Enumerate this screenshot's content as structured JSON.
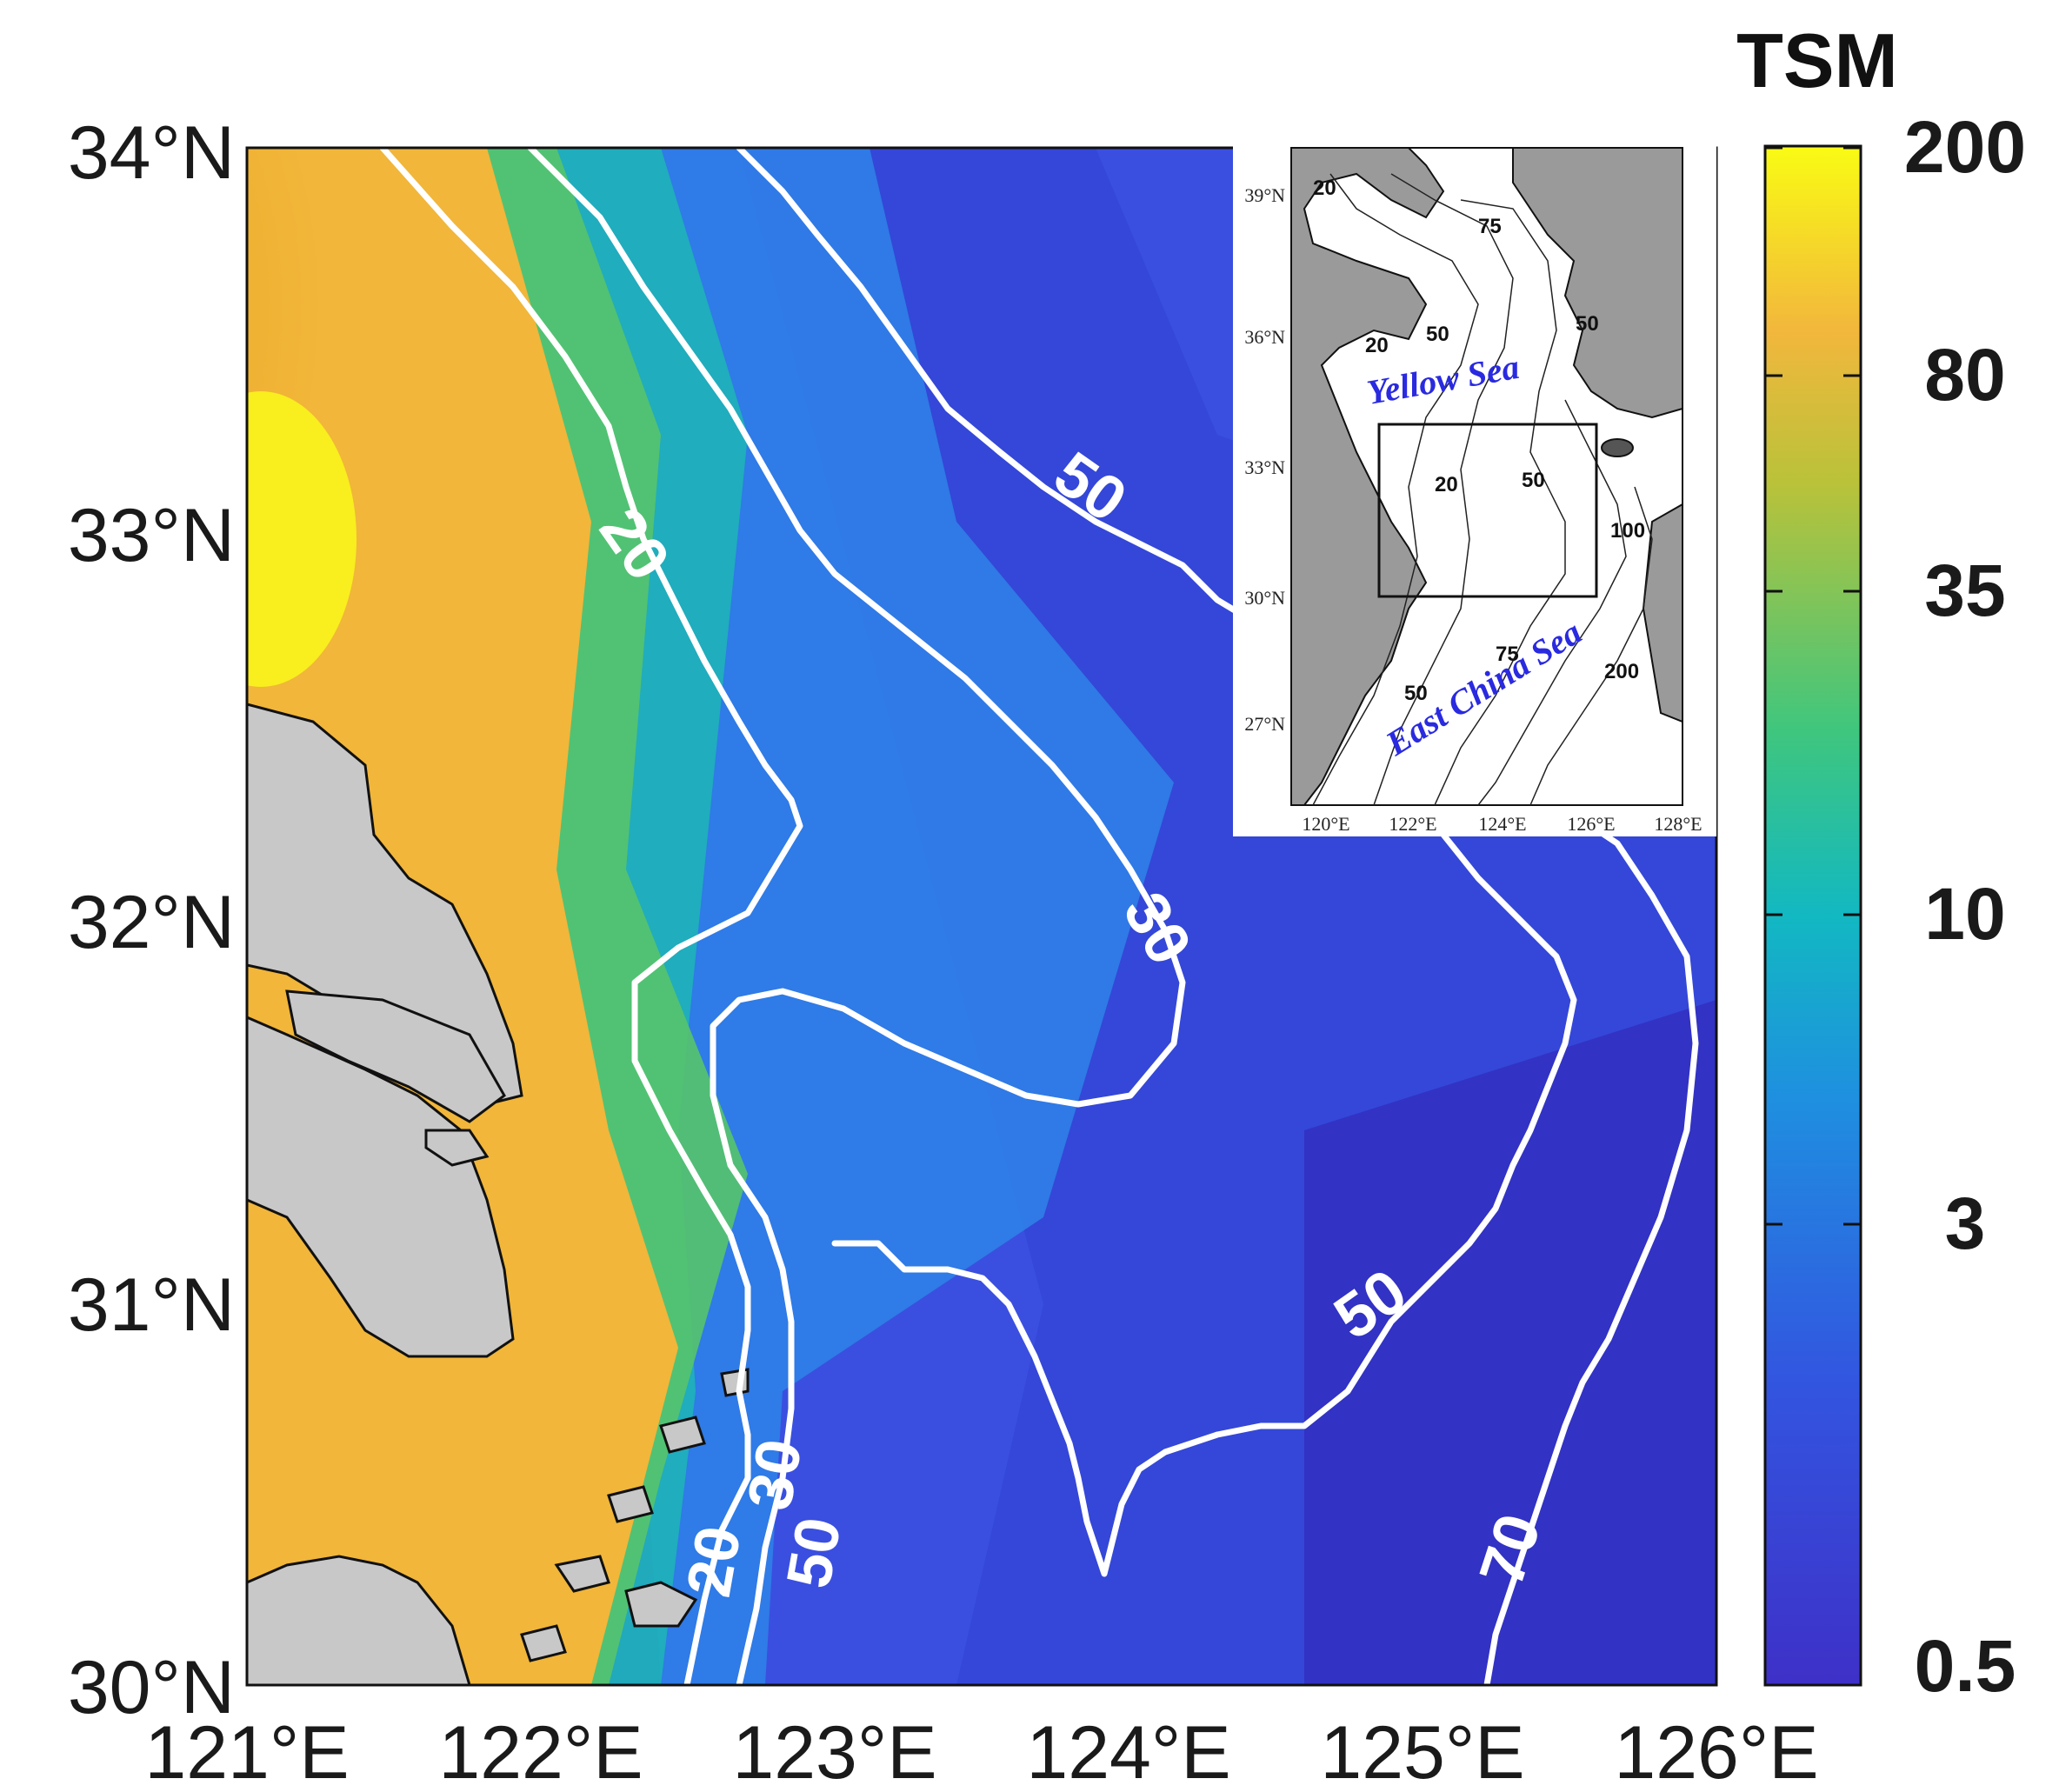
{
  "map": {
    "colorbar": {
      "title": "TSM",
      "ticks": [
        "200",
        "80",
        "35",
        "10",
        "3",
        "0.5"
      ],
      "colors": [
        "#f9f41c",
        "#f5b43a",
        "#b3c433",
        "#2fc3a2",
        "#1aa8d0",
        "#2f6ff0",
        "#3f3cd0"
      ]
    },
    "lat_labels": [
      "34°N",
      "33°N",
      "32°N",
      "31°N",
      "30°N"
    ],
    "lon_labels": [
      "121°E",
      "122°E",
      "123°E",
      "124°E",
      "125°E",
      "126°E"
    ],
    "contour_labels": [
      "20",
      "50",
      "30",
      "50",
      "20",
      "30",
      "50",
      "70"
    ],
    "inset": {
      "lat_ticks": [
        "39°N",
        "36°N",
        "33°N",
        "30°N",
        "27°N"
      ],
      "lon_ticks": [
        "120°E",
        "122°E",
        "124°E",
        "126°E",
        "128°E"
      ],
      "depth_labels": [
        "20",
        "75",
        "50",
        "20",
        "50",
        "20",
        "50",
        "100",
        "75",
        "50",
        "200"
      ],
      "sea_labels": [
        "Yellow Sea",
        "East China Sea"
      ]
    }
  }
}
